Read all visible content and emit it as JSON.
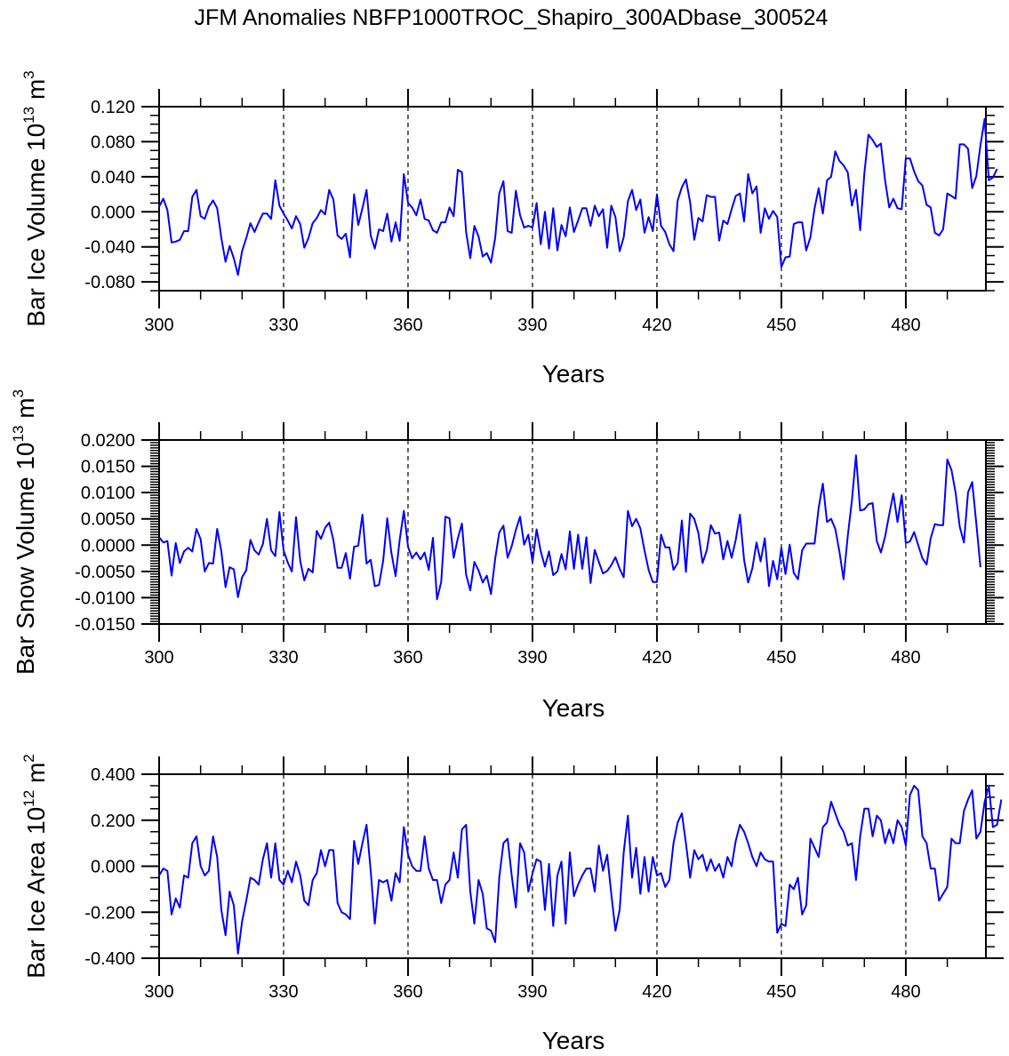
{
  "title": "JFM Anomalies NBFP1000TROC_Shapiro_300ADbase_300524",
  "chart_data": [
    {
      "type": "line",
      "title": "JFM Anomalies NBFP1000TROC_Shapiro_300ADbase_300524",
      "xlabel": "Years",
      "ylabel_text": "Bar Ice Volume 10",
      "ylabel_exp": "13",
      "ylabel_unit": " m",
      "ylabel_unit_exp": "3",
      "xlim": [
        300,
        499
      ],
      "ylim": [
        -0.09,
        0.12
      ],
      "x_ticks": [
        "300",
        "330",
        "360",
        "390",
        "420",
        "450",
        "480"
      ],
      "y_ticks": [
        "0.120",
        "0.080",
        "0.040",
        "0.000",
        "-0.040",
        "-0.080"
      ],
      "y_tick_values": [
        0.12,
        0.08,
        0.04,
        0.0,
        -0.04,
        -0.08
      ],
      "grid": "dashed vertical lines at x ticks",
      "line_color": "#0000ff",
      "x_start": 300,
      "values": [
        0.006,
        0.015,
        0.002,
        -0.035,
        -0.034,
        -0.032,
        -0.022,
        -0.022,
        0.017,
        0.025,
        -0.005,
        -0.008,
        0.006,
        0.013,
        0.004,
        -0.03,
        -0.057,
        -0.039,
        -0.053,
        -0.072,
        -0.045,
        -0.03,
        -0.013,
        -0.023,
        -0.012,
        -0.002,
        -0.002,
        -0.008,
        0.036,
        0.007,
        -0.002,
        -0.01,
        -0.019,
        -0.005,
        -0.014,
        -0.041,
        -0.03,
        -0.013,
        -0.007,
        0.002,
        -0.003,
        0.025,
        0.014,
        -0.027,
        -0.031,
        -0.025,
        -0.052,
        0.02,
        -0.015,
        0.004,
        0.025,
        -0.027,
        -0.042,
        -0.02,
        -0.022,
        -0.002,
        -0.034,
        -0.012,
        -0.033,
        0.043,
        0.01,
        0.005,
        -0.004,
        0.014,
        -0.008,
        -0.01,
        -0.021,
        -0.024,
        -0.012,
        -0.012,
        0.005,
        -0.005,
        0.048,
        0.045,
        -0.023,
        -0.053,
        -0.016,
        -0.028,
        -0.051,
        -0.047,
        -0.058,
        -0.03,
        0.021,
        0.035,
        -0.022,
        -0.024,
        0.024,
        -0.004,
        -0.018,
        -0.016,
        -0.018,
        0.01,
        -0.037,
        0.0,
        -0.042,
        0.004,
        -0.044,
        -0.015,
        -0.028,
        0.005,
        -0.023,
        -0.01,
        0.004,
        0.004,
        -0.016,
        0.007,
        -0.005,
        0.003,
        -0.041,
        0.007,
        -0.006,
        -0.045,
        -0.029,
        0.012,
        0.025,
        0.002,
        0.014,
        -0.024,
        -0.006,
        -0.022,
        0.02,
        -0.016,
        -0.023,
        -0.037,
        -0.045,
        0.013,
        0.028,
        0.037,
        0.011,
        -0.032,
        -0.007,
        -0.011,
        0.019,
        0.017,
        0.017,
        -0.033,
        -0.01,
        -0.014,
        0.003,
        0.018,
        0.021,
        -0.011,
        0.043,
        0.021,
        0.029,
        -0.024,
        0.004,
        -0.008,
        0.001,
        -0.006,
        -0.063,
        -0.052,
        -0.051,
        -0.014,
        -0.012,
        -0.012,
        -0.044,
        -0.029,
        0.004,
        0.027,
        -0.002,
        0.036,
        0.04,
        0.069,
        0.058,
        0.053,
        0.045,
        0.007,
        0.025,
        -0.021,
        0.044,
        0.088,
        0.082,
        0.074,
        0.078,
        0.036,
        0.005,
        0.015,
        0.004,
        0.003,
        0.061,
        0.061,
        0.046,
        0.035,
        0.03,
        0.008,
        0.005,
        -0.024,
        -0.027,
        -0.02,
        0.021,
        0.018,
        0.015,
        0.077,
        0.077,
        0.072,
        0.027,
        0.041,
        0.076,
        0.106,
        0.036,
        0.039,
        0.049
      ]
    },
    {
      "type": "line",
      "xlabel": "Years",
      "ylabel_text": "Bar Snow Volume 10",
      "ylabel_exp": "13",
      "ylabel_unit": " m",
      "ylabel_unit_exp": "3",
      "xlim": [
        300,
        499
      ],
      "ylim": [
        -0.015,
        0.02
      ],
      "x_ticks": [
        "300",
        "330",
        "360",
        "390",
        "420",
        "450",
        "480"
      ],
      "y_ticks": [
        "0.0200",
        "0.0150",
        "0.0100",
        "0.0050",
        "0.0000",
        "-0.0050",
        "-0.0100",
        "-0.0150"
      ],
      "y_tick_values": [
        0.02,
        0.015,
        0.01,
        0.005,
        0.0,
        -0.005,
        -0.01,
        -0.015
      ],
      "grid": "dashed vertical lines at x ticks",
      "line_color": "#0000ff",
      "x_start": 300,
      "values": [
        0.0015,
        0.0005,
        0.0008,
        -0.0058,
        0.0004,
        -0.0034,
        -0.0012,
        -0.0005,
        -0.0012,
        0.0031,
        0.0011,
        -0.005,
        -0.0034,
        -0.0035,
        0.0031,
        -0.0012,
        -0.008,
        -0.0042,
        -0.0046,
        -0.0099,
        -0.0061,
        -0.0048,
        0.001,
        -0.001,
        -0.0018,
        0.0002,
        0.005,
        -0.001,
        -0.0021,
        0.0063,
        -0.001,
        -0.0033,
        -0.005,
        0.0053,
        -0.003,
        -0.0067,
        -0.0045,
        -0.0052,
        0.0027,
        0.0012,
        0.0033,
        0.0043,
        0.001,
        -0.0043,
        -0.0043,
        -0.0015,
        -0.0064,
        -0.0003,
        -0.0001,
        0.0058,
        -0.0035,
        -0.0028,
        -0.0078,
        -0.0076,
        -0.003,
        0.0051,
        -0.0015,
        -0.0059,
        0.001,
        0.0065,
        -0.0003,
        -0.0025,
        -0.0014,
        -0.0027,
        -0.0014,
        -0.0047,
        0.0014,
        -0.0103,
        -0.007,
        0.0054,
        0.0051,
        -0.0024,
        0.0013,
        0.0041,
        -0.0056,
        -0.0086,
        -0.0032,
        -0.0048,
        -0.0071,
        -0.0058,
        -0.0093,
        -0.0026,
        0.0024,
        0.0037,
        -0.0024,
        -0.0002,
        0.0029,
        0.0054,
        0.0001,
        0.002,
        -0.0032,
        0.003,
        -0.0012,
        -0.0041,
        -0.0012,
        -0.0057,
        -0.005,
        -0.0017,
        -0.0046,
        0.0026,
        -0.0045,
        0.002,
        -0.0045,
        0.0015,
        -0.0072,
        -0.0009,
        -0.0032,
        -0.0054,
        -0.0049,
        -0.0038,
        -0.0023,
        -0.0045,
        -0.0061,
        0.0065,
        0.0036,
        0.005,
        0.0032,
        -0.001,
        -0.0047,
        -0.007,
        -0.007,
        0.002,
        -0.0004,
        -0.0004,
        -0.0047,
        -0.0034,
        0.0047,
        -0.0051,
        0.006,
        0.005,
        0.0023,
        -0.0034,
        -0.001,
        0.0038,
        0.0022,
        0.0024,
        -0.0027,
        0.0008,
        -0.0024,
        0.001,
        0.0058,
        -0.0028,
        -0.0071,
        -0.0044,
        0.0005,
        -0.0031,
        0.0013,
        -0.0078,
        -0.003,
        -0.0065,
        -0.0005,
        -0.0055,
        0.0001,
        -0.0053,
        -0.0065,
        -0.001,
        0.0003,
        0.0003,
        0.0003,
        0.0071,
        0.0117,
        0.0044,
        0.005,
        0.0031,
        -0.0013,
        -0.0065,
        0.0017,
        0.0085,
        0.0171,
        0.0066,
        0.0068,
        0.0078,
        0.008,
        0.0008,
        -0.0014,
        0.0016,
        0.0059,
        0.0098,
        0.0044,
        0.0095,
        0.0004,
        0.0007,
        0.0025,
        0.0,
        -0.0025,
        -0.0037,
        0.0013,
        0.004,
        0.0038,
        0.0038,
        0.0163,
        0.0143,
        0.01,
        0.0035,
        0.0005,
        0.01,
        0.012,
        0.004,
        -0.0042
      ]
    },
    {
      "type": "line",
      "xlabel": "Years",
      "ylabel_text": "Bar Ice Area 10",
      "ylabel_exp": "12",
      "ylabel_unit": " m",
      "ylabel_unit_exp": "2",
      "xlim": [
        300,
        499
      ],
      "ylim": [
        -0.4,
        0.4
      ],
      "x_ticks": [
        "300",
        "330",
        "360",
        "390",
        "420",
        "450",
        "480"
      ],
      "y_ticks": [
        "0.400",
        "0.200",
        "0.000",
        "-0.200",
        "-0.400"
      ],
      "y_tick_values": [
        0.4,
        0.2,
        0.0,
        -0.2,
        -0.4
      ],
      "grid": "dashed vertical lines at x ticks",
      "line_color": "#0000ff",
      "x_start": 300,
      "values": [
        -0.04,
        -0.01,
        -0.02,
        -0.21,
        -0.14,
        -0.18,
        -0.04,
        -0.05,
        0.1,
        0.13,
        0.0,
        -0.04,
        -0.02,
        0.13,
        0.04,
        -0.19,
        -0.3,
        -0.11,
        -0.17,
        -0.38,
        -0.24,
        -0.15,
        -0.05,
        -0.06,
        -0.08,
        0.03,
        0.1,
        -0.05,
        0.1,
        -0.06,
        -0.08,
        -0.02,
        -0.07,
        0.02,
        -0.04,
        -0.15,
        -0.17,
        -0.06,
        -0.03,
        0.07,
        0.0,
        0.07,
        0.07,
        -0.16,
        -0.2,
        -0.21,
        -0.23,
        0.11,
        0.01,
        0.1,
        0.18,
        -0.02,
        -0.25,
        -0.06,
        -0.07,
        -0.06,
        -0.15,
        -0.03,
        -0.07,
        0.17,
        0.05,
        0.0,
        -0.02,
        -0.02,
        0.13,
        -0.01,
        -0.06,
        -0.06,
        -0.16,
        -0.08,
        -0.06,
        0.06,
        -0.05,
        0.16,
        0.18,
        -0.11,
        -0.25,
        -0.06,
        -0.12,
        -0.27,
        -0.28,
        -0.33,
        -0.05,
        0.1,
        0.12,
        -0.04,
        -0.18,
        0.1,
        0.06,
        -0.11,
        -0.03,
        0.03,
        0.02,
        -0.19,
        0.01,
        -0.26,
        -0.04,
        0.02,
        -0.25,
        0.06,
        -0.13,
        -0.08,
        -0.04,
        -0.01,
        -0.01,
        -0.11,
        0.09,
        -0.02,
        0.05,
        -0.12,
        -0.28,
        -0.19,
        0.06,
        0.22,
        -0.05,
        0.08,
        -0.12,
        0.04,
        -0.11,
        0.04,
        -0.04,
        -0.03,
        -0.09,
        -0.06,
        0.1,
        0.19,
        0.23,
        0.1,
        -0.05,
        0.07,
        0.03,
        0.05,
        -0.02,
        0.03,
        -0.02,
        0.01,
        -0.05,
        0.04,
        0.0,
        0.11,
        0.18,
        0.15,
        0.1,
        0.04,
        0.0,
        0.06,
        0.03,
        0.02,
        0.02,
        -0.29,
        -0.25,
        -0.26,
        -0.08,
        -0.1,
        -0.05,
        -0.21,
        -0.17,
        0.12,
        0.08,
        0.04,
        0.17,
        0.19,
        0.28,
        0.23,
        0.18,
        0.15,
        0.09,
        0.1,
        -0.06,
        0.13,
        0.25,
        0.25,
        0.13,
        0.22,
        0.2,
        0.1,
        0.16,
        0.1,
        0.2,
        0.17,
        0.09,
        0.31,
        0.35,
        0.33,
        0.13,
        0.1,
        -0.01,
        -0.01,
        -0.15,
        -0.12,
        -0.09,
        0.12,
        0.1,
        0.1,
        0.24,
        0.29,
        0.33,
        0.12,
        0.15,
        0.28,
        0.35,
        0.17,
        0.18,
        0.29
      ]
    }
  ]
}
